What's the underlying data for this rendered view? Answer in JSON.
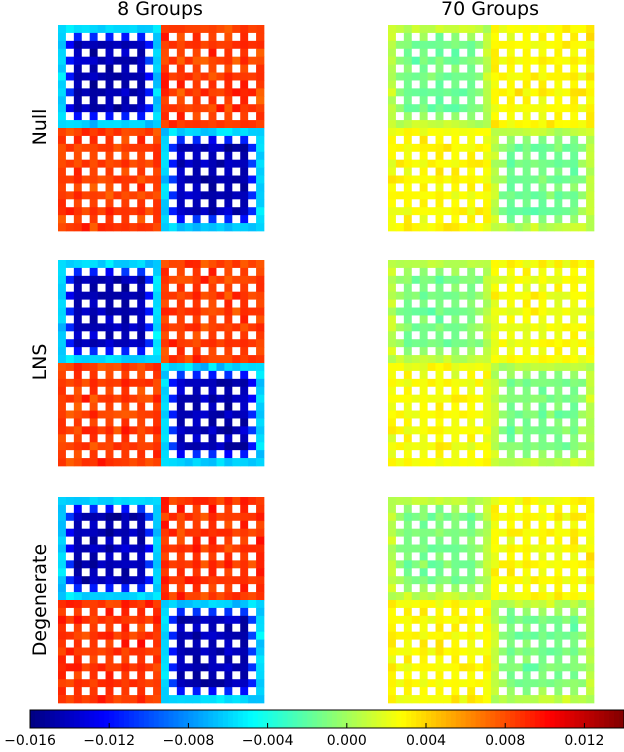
{
  "chart_data": {
    "type": "heatmap",
    "column_titles": [
      "8 Groups",
      "70 Groups"
    ],
    "row_labels": [
      "Null",
      "LNS",
      "Degenerate"
    ],
    "panels": [
      {
        "row": "Null",
        "column": "8 Groups",
        "blocks": 2,
        "pattern": "block-diagonal",
        "diag_mean": -0.0145,
        "offdiag_mean": 0.0085,
        "edge_mean": -0.006,
        "noise": 0.0016,
        "missing_cells": "regular grid (white)"
      },
      {
        "row": "Null",
        "column": "70 Groups",
        "blocks": 2,
        "pattern": "near-uniform",
        "diag_mean": -0.0015,
        "offdiag_mean": 0.0028,
        "edge_mean": 0.0008,
        "noise": 0.0013,
        "missing_cells": "regular grid (white)"
      },
      {
        "row": "LNS",
        "column": "8 Groups",
        "blocks": 2,
        "pattern": "block-diagonal",
        "diag_mean": -0.0145,
        "offdiag_mean": 0.0085,
        "edge_mean": -0.006,
        "noise": 0.0016,
        "missing_cells": "regular grid (white)"
      },
      {
        "row": "LNS",
        "column": "70 Groups",
        "blocks": 2,
        "pattern": "near-uniform",
        "diag_mean": -0.0012,
        "offdiag_mean": 0.0025,
        "edge_mean": 0.0008,
        "noise": 0.0013,
        "missing_cells": "regular grid (white)"
      },
      {
        "row": "Degenerate",
        "column": "8 Groups",
        "blocks": 2,
        "pattern": "block-diagonal",
        "diag_mean": -0.0145,
        "offdiag_mean": 0.0088,
        "edge_mean": -0.006,
        "noise": 0.0016,
        "missing_cells": "regular grid (white)"
      },
      {
        "row": "Degenerate",
        "column": "70 Groups",
        "blocks": 2,
        "pattern": "near-uniform",
        "diag_mean": -0.0012,
        "offdiag_mean": 0.0028,
        "edge_mean": 0.0008,
        "noise": 0.0013,
        "missing_cells": "regular grid (white)"
      }
    ],
    "colorbar": {
      "colormap": "jet",
      "range": [
        -0.016,
        0.014
      ],
      "ticks": [
        -0.016,
        -0.012,
        -0.008,
        -0.004,
        0.0,
        0.004,
        0.008,
        0.012
      ],
      "tick_labels": [
        "−0.016",
        "−0.012",
        "−0.008",
        "−0.004",
        "0.000",
        "0.004",
        "0.008",
        "0.012"
      ],
      "placement": "bottom"
    },
    "grid": false
  }
}
